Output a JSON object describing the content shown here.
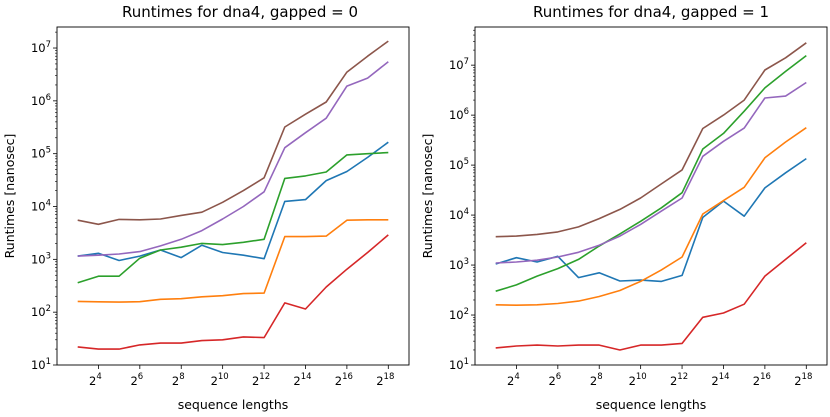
{
  "chart_data": [
    {
      "type": "line",
      "title": "Runtimes for dna4, gapped = 0",
      "xlabel": "sequence lengths",
      "ylabel": "Runtimes [nanosec]",
      "x_scale": "log2",
      "y_scale": "log10",
      "xlim": [
        4,
        524288
      ],
      "ylim": [
        10,
        25000000
      ],
      "x_ticks": [
        {
          "value": 16,
          "base": "2",
          "exp": "4"
        },
        {
          "value": 64,
          "base": "2",
          "exp": "6"
        },
        {
          "value": 256,
          "base": "2",
          "exp": "8"
        },
        {
          "value": 1024,
          "base": "2",
          "exp": "10"
        },
        {
          "value": 4096,
          "base": "2",
          "exp": "12"
        },
        {
          "value": 16384,
          "base": "2",
          "exp": "14"
        },
        {
          "value": 65536,
          "base": "2",
          "exp": "16"
        },
        {
          "value": 262144,
          "base": "2",
          "exp": "18"
        }
      ],
      "y_ticks": [
        {
          "value": 10,
          "base": "10",
          "exp": "1"
        },
        {
          "value": 100,
          "base": "10",
          "exp": "2"
        },
        {
          "value": 1000,
          "base": "10",
          "exp": "3"
        },
        {
          "value": 10000,
          "base": "10",
          "exp": "4"
        },
        {
          "value": 100000,
          "base": "10",
          "exp": "5"
        },
        {
          "value": 1000000,
          "base": "10",
          "exp": "6"
        },
        {
          "value": 10000000,
          "base": "10",
          "exp": "7"
        }
      ],
      "x": [
        8,
        16,
        32,
        64,
        128,
        256,
        512,
        1024,
        2048,
        4096,
        8192,
        16384,
        32768,
        65536,
        131072,
        262144
      ],
      "series": [
        {
          "color": "#1f77b4",
          "values": [
            1150,
            1300,
            950,
            1150,
            1500,
            1080,
            1850,
            1350,
            1200,
            1030,
            12500,
            13500,
            31000,
            46000,
            85000,
            165000
          ]
        },
        {
          "color": "#ff7f0e",
          "values": [
            160,
            157,
            155,
            158,
            175,
            180,
            195,
            205,
            225,
            230,
            2700,
            2700,
            2750,
            5500,
            5600,
            5600
          ]
        },
        {
          "color": "#2ca02c",
          "values": [
            360,
            480,
            480,
            1050,
            1500,
            1700,
            2000,
            1900,
            2100,
            2400,
            34000,
            38000,
            45000,
            95000,
            100000,
            105000
          ]
        },
        {
          "color": "#d62728",
          "values": [
            22,
            20,
            20,
            24,
            26,
            26,
            29,
            30,
            34,
            33,
            150,
            115,
            300,
            650,
            1350,
            2900
          ]
        },
        {
          "color": "#9467bd",
          "values": [
            1150,
            1200,
            1260,
            1400,
            1800,
            2400,
            3500,
            5800,
            10000,
            19000,
            130000,
            250000,
            470000,
            1900000,
            2700000,
            5500000
          ]
        },
        {
          "color": "#8c564b",
          "values": [
            5500,
            4600,
            5700,
            5600,
            5800,
            6800,
            7800,
            12000,
            20000,
            35000,
            320000,
            560000,
            950000,
            3500000,
            7000000,
            13500000
          ]
        }
      ]
    },
    {
      "type": "line",
      "title": "Runtimes for dna4, gapped = 1",
      "xlabel": "sequence lengths",
      "ylabel": "Runtimes [nanosec]",
      "x_scale": "log2",
      "y_scale": "log10",
      "xlim": [
        4,
        524288
      ],
      "ylim": [
        10,
        58000000
      ],
      "x_ticks": [
        {
          "value": 16,
          "base": "2",
          "exp": "4"
        },
        {
          "value": 64,
          "base": "2",
          "exp": "6"
        },
        {
          "value": 256,
          "base": "2",
          "exp": "8"
        },
        {
          "value": 1024,
          "base": "2",
          "exp": "10"
        },
        {
          "value": 4096,
          "base": "2",
          "exp": "12"
        },
        {
          "value": 16384,
          "base": "2",
          "exp": "14"
        },
        {
          "value": 65536,
          "base": "2",
          "exp": "16"
        },
        {
          "value": 262144,
          "base": "2",
          "exp": "18"
        }
      ],
      "y_ticks": [
        {
          "value": 10,
          "base": "10",
          "exp": "1"
        },
        {
          "value": 100,
          "base": "10",
          "exp": "2"
        },
        {
          "value": 1000,
          "base": "10",
          "exp": "3"
        },
        {
          "value": 10000,
          "base": "10",
          "exp": "4"
        },
        {
          "value": 100000,
          "base": "10",
          "exp": "5"
        },
        {
          "value": 1000000,
          "base": "10",
          "exp": "6"
        },
        {
          "value": 10000000,
          "base": "10",
          "exp": "7"
        }
      ],
      "x": [
        8,
        16,
        32,
        64,
        128,
        256,
        512,
        1024,
        2048,
        4096,
        8192,
        16384,
        32768,
        65536,
        131072,
        262144
      ],
      "series": [
        {
          "color": "#1f77b4",
          "values": [
            1050,
            1400,
            1150,
            1500,
            560,
            700,
            480,
            500,
            470,
            620,
            9000,
            19000,
            9500,
            35000,
            70000,
            135000
          ]
        },
        {
          "color": "#ff7f0e",
          "values": [
            160,
            157,
            160,
            170,
            190,
            235,
            310,
            470,
            800,
            1450,
            10500,
            19500,
            36000,
            140000,
            290000,
            560000
          ]
        },
        {
          "color": "#2ca02c",
          "values": [
            300,
            400,
            600,
            850,
            1300,
            2400,
            4200,
            7500,
            14000,
            28000,
            210000,
            430000,
            1200000,
            3500000,
            7500000,
            15500000
          ]
        },
        {
          "color": "#d62728",
          "values": [
            22,
            24,
            25,
            24,
            25,
            25,
            20,
            25,
            25,
            27,
            90,
            110,
            165,
            600,
            1300,
            2800
          ]
        },
        {
          "color": "#9467bd",
          "values": [
            1100,
            1150,
            1250,
            1450,
            1800,
            2500,
            3800,
            6500,
            12000,
            22000,
            150000,
            300000,
            550000,
            2200000,
            2400000,
            4500000
          ]
        },
        {
          "color": "#8c564b",
          "values": [
            3700,
            3800,
            4100,
            4600,
            5800,
            8500,
            13000,
            22000,
            42000,
            80000,
            540000,
            1000000,
            2000000,
            8000000,
            14000000,
            28000000
          ]
        }
      ]
    }
  ]
}
